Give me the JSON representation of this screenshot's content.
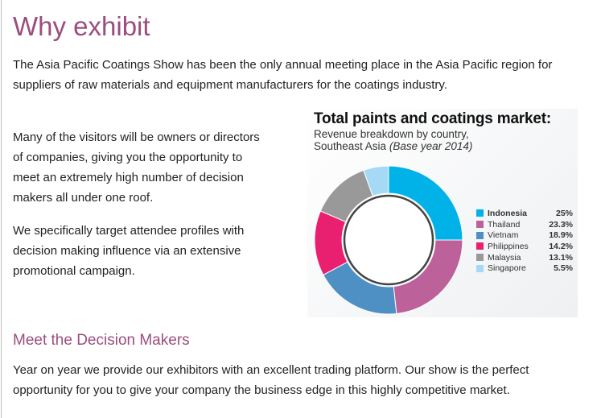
{
  "page": {
    "title": "Why exhibit",
    "intro": "The Asia Pacific Coatings Show has been the only annual meeting place in the Asia Pacific region for suppliers of raw materials and equipment manufacturers for the coatings industry.",
    "para1": "Many of the visitors will be owners or directors of companies, giving you the opportunity to meet an extremely high number of decision makers all under one roof.",
    "para2": "We specifically target attendee profiles with decision making influence via an extensive promotional campaign.",
    "section_title": "Meet the Decision Makers",
    "para3": "Year on year we provide our exhibitors with an excellent trading platform. Our show is the perfect opportunity for you to give your company the business edge in this highly competitive market."
  },
  "chart_data": {
    "type": "pie",
    "title": "Total paints and coatings market:",
    "subtitle": "Revenue breakdown by country,",
    "subtitle2": "Southeast Asia",
    "subtitle_note": "(Base year 2014)",
    "legend_position": "right",
    "slices": [
      {
        "label": "Indonesia",
        "value": 25,
        "display": "25%",
        "color": "#00b2e8"
      },
      {
        "label": "Thailand",
        "value": 23.3,
        "display": "23.3%",
        "color": "#bd619b"
      },
      {
        "label": "Vietnam",
        "value": 18.9,
        "display": "18.9%",
        "color": "#4e8fc4"
      },
      {
        "label": "Philippines",
        "value": 14.2,
        "display": "14.2%",
        "color": "#e8206f"
      },
      {
        "label": "Malaysia",
        "value": 13.1,
        "display": "13.1%",
        "color": "#999999"
      },
      {
        "label": "Singapore",
        "value": 5.5,
        "display": "5.5%",
        "color": "#a6d9f5"
      }
    ]
  }
}
